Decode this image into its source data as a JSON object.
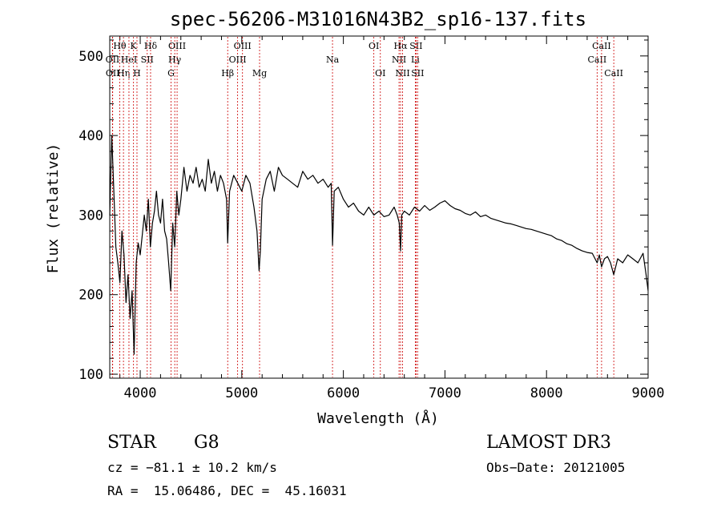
{
  "chart_data": {
    "type": "line",
    "title": "spec-56206-M31016N43B2_sp16-137.fits",
    "xlabel": "Wavelength (Å)",
    "ylabel": "Flux (relative)",
    "xlim": [
      3700,
      9000
    ],
    "ylim": [
      95,
      525
    ],
    "x_ticks": [
      4000,
      5000,
      6000,
      7000,
      8000,
      9000
    ],
    "x_tick_labels": [
      "4000",
      "5000",
      "6000",
      "7000",
      "8000",
      "9000"
    ],
    "y_ticks": [
      100,
      200,
      300,
      400,
      500
    ],
    "y_tick_labels": [
      "100",
      "200",
      "300",
      "400",
      "500"
    ],
    "series": [
      {
        "name": "flux",
        "x": [
          3700,
          3720,
          3740,
          3760,
          3780,
          3800,
          3820,
          3840,
          3860,
          3880,
          3900,
          3920,
          3940,
          3960,
          3980,
          4000,
          4020,
          4040,
          4060,
          4080,
          4100,
          4120,
          4140,
          4160,
          4180,
          4200,
          4220,
          4240,
          4260,
          4280,
          4300,
          4320,
          4340,
          4360,
          4380,
          4400,
          4430,
          4460,
          4490,
          4520,
          4550,
          4580,
          4610,
          4640,
          4670,
          4700,
          4730,
          4760,
          4790,
          4820,
          4850,
          4861,
          4880,
          4920,
          4960,
          5000,
          5040,
          5080,
          5120,
          5150,
          5170,
          5183,
          5200,
          5240,
          5280,
          5320,
          5360,
          5400,
          5450,
          5500,
          5550,
          5600,
          5650,
          5700,
          5750,
          5800,
          5850,
          5880,
          5893,
          5910,
          5950,
          6000,
          6050,
          6100,
          6150,
          6200,
          6250,
          6300,
          6350,
          6400,
          6450,
          6500,
          6530,
          6550,
          6563,
          6575,
          6600,
          6650,
          6700,
          6750,
          6800,
          6850,
          6900,
          6950,
          7000,
          7050,
          7100,
          7150,
          7200,
          7250,
          7300,
          7350,
          7400,
          7450,
          7500,
          7550,
          7600,
          7650,
          7700,
          7750,
          7800,
          7850,
          7900,
          7950,
          8000,
          8050,
          8100,
          8150,
          8200,
          8250,
          8300,
          8350,
          8400,
          8450,
          8498,
          8520,
          8542,
          8570,
          8600,
          8630,
          8662,
          8700,
          8750,
          8800,
          8850,
          8900,
          8950,
          8980,
          9000
        ],
        "y": [
          300,
          400,
          330,
          260,
          240,
          215,
          280,
          250,
          190,
          225,
          170,
          205,
          125,
          240,
          265,
          250,
          275,
          300,
          280,
          320,
          260,
          290,
          305,
          330,
          300,
          290,
          320,
          280,
          270,
          240,
          205,
          290,
          260,
          330,
          300,
          320,
          360,
          330,
          350,
          340,
          360,
          335,
          345,
          330,
          370,
          340,
          355,
          330,
          350,
          340,
          320,
          265,
          330,
          350,
          340,
          330,
          350,
          340,
          310,
          280,
          230,
          255,
          320,
          345,
          355,
          330,
          360,
          350,
          345,
          340,
          335,
          355,
          345,
          350,
          340,
          345,
          335,
          340,
          262,
          330,
          335,
          320,
          310,
          315,
          305,
          300,
          310,
          300,
          305,
          298,
          300,
          310,
          300,
          290,
          255,
          300,
          305,
          300,
          310,
          305,
          312,
          306,
          310,
          315,
          318,
          312,
          308,
          306,
          302,
          300,
          304,
          298,
          300,
          296,
          294,
          292,
          290,
          289,
          287,
          285,
          283,
          282,
          280,
          278,
          276,
          274,
          270,
          268,
          264,
          262,
          258,
          255,
          253,
          252,
          240,
          250,
          235,
          245,
          248,
          240,
          225,
          245,
          240,
          250,
          245,
          240,
          252,
          225,
          205
        ]
      }
    ],
    "lines": [
      {
        "label": "Hθ",
        "x": 3798,
        "row": 1
      },
      {
        "label": "OII",
        "x": 3727,
        "row": 2
      },
      {
        "label": "OII",
        "x": 3729,
        "row": 3
      },
      {
        "label": "Hη",
        "x": 3835,
        "row": 3
      },
      {
        "label": "HeI",
        "x": 3889,
        "row": 2
      },
      {
        "label": "K",
        "x": 3934,
        "row": 1
      },
      {
        "label": "H",
        "x": 3968,
        "row": 3
      },
      {
        "label": "SII",
        "x": 4069,
        "row": 2
      },
      {
        "label": "Hδ",
        "x": 4102,
        "row": 1
      },
      {
        "label": "Hγ",
        "x": 4340,
        "row": 2
      },
      {
        "label": "G",
        "x": 4304,
        "row": 3
      },
      {
        "label": "OIII",
        "x": 4363,
        "row": 1
      },
      {
        "label": "Hβ",
        "x": 4861,
        "row": 3
      },
      {
        "label": "OIII",
        "x": 4959,
        "row": 2
      },
      {
        "label": "OIII",
        "x": 5007,
        "row": 1
      },
      {
        "label": "Mg",
        "x": 5175,
        "row": 3
      },
      {
        "label": "Na",
        "x": 5893,
        "row": 2
      },
      {
        "label": "OI",
        "x": 6300,
        "row": 1
      },
      {
        "label": "OI",
        "x": 6364,
        "row": 3
      },
      {
        "label": "NII",
        "x": 6548,
        "row": 2
      },
      {
        "label": "NII",
        "x": 6583,
        "row": 3
      },
      {
        "label": "Hα",
        "x": 6563,
        "row": 1
      },
      {
        "label": "Li",
        "x": 6708,
        "row": 2
      },
      {
        "label": "SII",
        "x": 6716,
        "row": 1
      },
      {
        "label": "SII",
        "x": 6731,
        "row": 3
      },
      {
        "label": "CaII",
        "x": 8498,
        "row": 2
      },
      {
        "label": "CaII",
        "x": 8542,
        "row": 1
      },
      {
        "label": "CaII",
        "x": 8662,
        "row": 3
      }
    ],
    "line_color": "#cc0000"
  },
  "info": {
    "class": "STAR",
    "subclass": "G8",
    "survey": "LAMOST DR3",
    "cz": "cz = −81.1 ± 10.2 km/s",
    "obs_date": "Obs−Date: 20121005",
    "coords": "RA =  15.06486, DEC =  45.16031"
  }
}
